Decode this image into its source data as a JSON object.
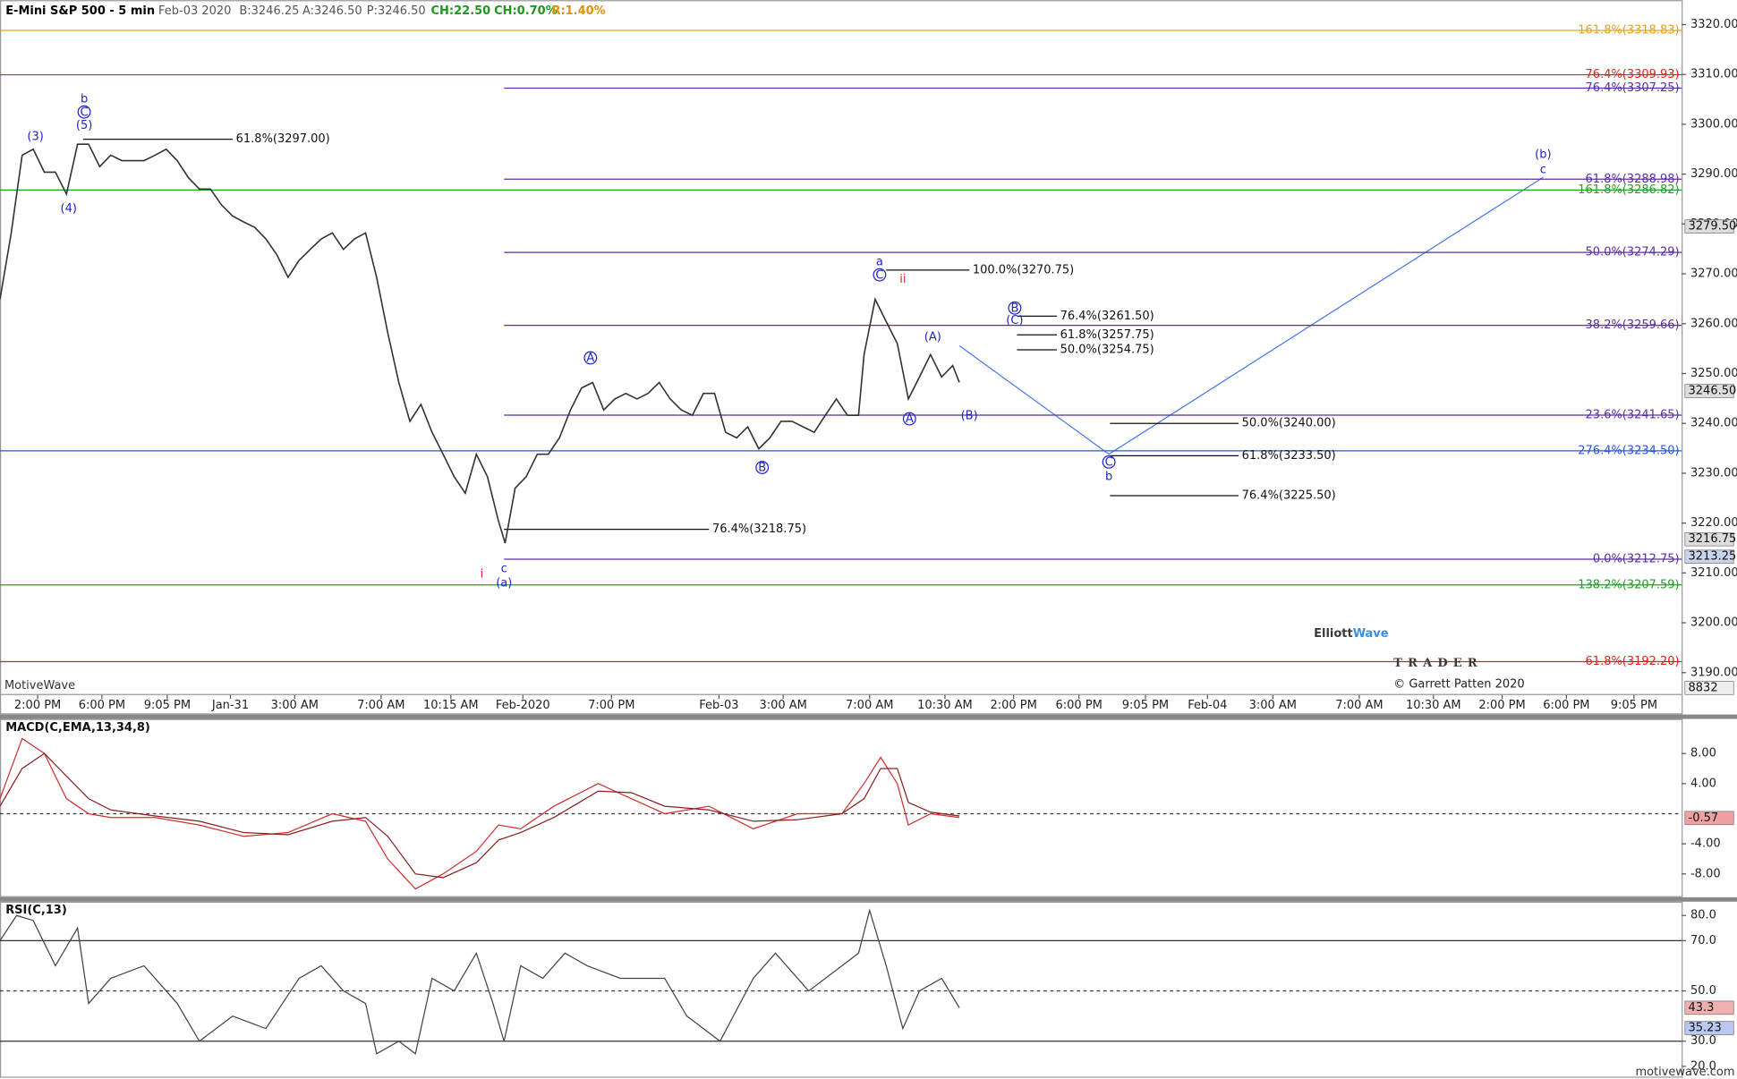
{
  "header": [
    {
      "text": "E-Mini S&P 500 - 5 min",
      "color": "#000000"
    },
    {
      "text": "Feb-03 2020",
      "color": "#555555"
    },
    {
      "text": "B:3246.25",
      "color": "#555555"
    },
    {
      "text": "A:3246.50",
      "color": "#555555"
    },
    {
      "text": "P:3246.50",
      "color": "#555555"
    },
    {
      "text": "CH:22.50",
      "color": "#1a9a1a"
    },
    {
      "text": "CH:0.70%",
      "color": "#1a9a1a"
    },
    {
      "text": "R:1.40%",
      "color": "#e0900a"
    }
  ],
  "watermark": {
    "motivewave": "MotiveWave",
    "logo_left": "Elliott",
    "logo_right": "Wave",
    "logo_sub": "TRADER",
    "copyright": "© Garrett Patten 2020",
    "site": "motivewave.com"
  },
  "chart_data": [
    {
      "type": "line",
      "color": "#333333",
      "x": [
        0,
        10,
        20,
        30,
        40,
        50,
        60,
        70,
        80,
        90,
        100,
        110,
        120,
        130,
        140,
        150,
        160,
        170,
        180,
        190,
        200,
        210,
        220,
        230,
        240,
        250,
        260,
        270,
        280,
        290,
        300,
        310,
        320,
        330,
        340,
        350,
        360,
        370,
        380,
        390,
        400,
        410,
        420,
        430,
        440,
        450,
        456,
        465,
        475,
        485,
        495,
        505,
        515,
        525,
        535,
        545,
        555,
        565,
        575,
        585,
        595,
        605,
        615,
        625,
        635,
        645,
        655,
        665,
        675,
        685,
        695,
        705,
        715,
        725,
        735,
        745,
        755,
        765,
        775,
        780,
        790,
        800,
        810,
        820,
        830,
        840,
        850,
        860,
        866
      ],
      "values": [
        3264.9,
        3278,
        3293.8,
        3295,
        3290.4,
        3290.4,
        3286,
        3296,
        3296,
        3291.5,
        3293.8,
        3292.7,
        3292.7,
        3292.7,
        3293.8,
        3295,
        3292.7,
        3289.3,
        3287,
        3287,
        3283.8,
        3281.6,
        3280.4,
        3279.3,
        3277,
        3273.8,
        3269.3,
        3272.7,
        3274.9,
        3277,
        3278.2,
        3274.9,
        3277,
        3278.2,
        3269.3,
        3258.2,
        3248.2,
        3240.4,
        3243.8,
        3238.2,
        3233.8,
        3229.3,
        3226,
        3233.8,
        3229.3,
        3220.4,
        3216,
        3227,
        3229.3,
        3233.8,
        3233.8,
        3237.1,
        3242.7,
        3247.1,
        3248.2,
        3242.7,
        3244.9,
        3246,
        3244.9,
        3246,
        3248.2,
        3244.9,
        3242.7,
        3241.6,
        3246,
        3246,
        3238.2,
        3237.1,
        3239.3,
        3234.9,
        3237.1,
        3240.4,
        3240.4,
        3239.3,
        3238.2,
        3241.6,
        3244.9,
        3241.6,
        3241.6,
        3253.8,
        3264.9,
        3260.4,
        3256,
        3244.9,
        3249.3,
        3253.8,
        3249.3,
        3251.6,
        3248.2
      ],
      "xlim": [
        0,
        1518
      ],
      "ylim": [
        3185.6,
        3324.9
      ],
      "yticks": [
        {
          "value": 3190,
          "label": "3190.00"
        },
        {
          "value": 3200,
          "label": "3200.00"
        },
        {
          "value": 3210,
          "label": "3210.00"
        },
        {
          "value": 3220,
          "label": "3220.00"
        },
        {
          "value": 3230,
          "label": "3230.00"
        },
        {
          "value": 3240,
          "label": "3240.00"
        },
        {
          "value": 3250,
          "label": "3250.00"
        },
        {
          "value": 3260,
          "label": "3260.00"
        },
        {
          "value": 3270,
          "label": "3270.00"
        },
        {
          "value": 3280,
          "label": "3280.00"
        },
        {
          "value": 3290,
          "label": "3290.00"
        },
        {
          "value": 3300,
          "label": "3300.00"
        },
        {
          "value": 3310,
          "label": "3310.00"
        },
        {
          "value": 3320,
          "label": "3320.00"
        }
      ],
      "x_tick_labels": [
        "2:00 PM",
        "6:00 PM",
        "9:05 PM",
        "Jan-31",
        "3:00 AM",
        "7:00 AM",
        "10:15 AM",
        "Feb-2020",
        "7:00 PM",
        "Feb-03",
        "3:00 AM",
        "7:00 AM",
        "10:30 AM",
        "2:00 PM",
        "6:00 PM",
        "9:05 PM",
        "Feb-04",
        "3:00 AM",
        "7:00 AM",
        "10:30 AM",
        "2:00 PM",
        "6:00 PM",
        "9:05 PM"
      ],
      "fib_levels": [
        {
          "value": 3318.83,
          "label": "161.8%(3318.83)",
          "color": "#e8a020"
        },
        {
          "value": 3309.93,
          "label": "76.4%(3309.93)",
          "color": "#e02020"
        },
        {
          "value": 3307.25,
          "label": "76.4%(3307.25)",
          "color": "#5b2ea6"
        },
        {
          "value": 3288.98,
          "label": "61.8%(3288.98)",
          "color": "#5b2ea6"
        },
        {
          "value": 3286.82,
          "label": "161.8%(3286.82)",
          "color": "#2a9a2a"
        },
        {
          "value": 3274.29,
          "label": "50.0%(3274.29)",
          "color": "#5b2ea6"
        },
        {
          "value": 3259.66,
          "label": "38.2%(3259.66)",
          "color": "#5b2ea6"
        },
        {
          "value": 3241.65,
          "label": "23.6%(3241.65)",
          "color": "#5b2ea6"
        },
        {
          "value": 3234.5,
          "label": "276.4%(3234.50)",
          "color": "#2a55e0"
        },
        {
          "value": 3212.75,
          "label": "0.0%(3212.75)",
          "color": "#5b2ea6"
        },
        {
          "value": 3207.59,
          "label": "138.2%(3207.59)",
          "color": "#2a9a2a"
        },
        {
          "value": 3192.2,
          "label": "61.8%(3192.20)",
          "color": "#e02020"
        }
      ],
      "short_levels": [
        {
          "value": 3297.0,
          "label": "61.8%(3297.00)"
        },
        {
          "value": 3270.75,
          "label": "100.0%(3270.75)"
        },
        {
          "value": 3261.5,
          "label": "76.4%(3261.50)"
        },
        {
          "value": 3257.75,
          "label": "61.8%(3257.75)"
        },
        {
          "value": 3254.75,
          "label": "50.0%(3254.75)"
        },
        {
          "value": 3240.0,
          "label": "50.0%(3240.00)"
        },
        {
          "value": 3233.5,
          "label": "61.8%(3233.50)"
        },
        {
          "value": 3225.5,
          "label": "76.4%(3225.50)"
        },
        {
          "value": 3218.75,
          "label": "76.4%(3218.75)"
        }
      ],
      "wave_labels": [
        {
          "text": "b",
          "color": "#2222cc"
        },
        {
          "text": "C",
          "color": "#2222cc",
          "circled": true
        },
        {
          "text": "(5)",
          "color": "#2222cc"
        },
        {
          "text": "(3)",
          "color": "#2222cc"
        },
        {
          "text": "(4)",
          "color": "#2222cc"
        },
        {
          "text": "i",
          "color": "#dd2222"
        },
        {
          "text": "c",
          "color": "#2222cc"
        },
        {
          "text": "(a)",
          "color": "#2222cc"
        },
        {
          "text": "A",
          "color": "#2222cc",
          "circled": true
        },
        {
          "text": "B",
          "color": "#2222cc",
          "circled": true
        },
        {
          "text": "a",
          "color": "#2222cc"
        },
        {
          "text": "C",
          "color": "#2222cc",
          "circled": true
        },
        {
          "text": "ii",
          "color": "#dd2222"
        },
        {
          "text": "(A)",
          "color": "#2222cc"
        },
        {
          "text": "A",
          "color": "#2222cc",
          "circled": true
        },
        {
          "text": "(B)",
          "color": "#2222cc"
        },
        {
          "text": "B",
          "color": "#2222cc",
          "circled": true
        },
        {
          "text": "(C)",
          "color": "#2222cc"
        },
        {
          "text": "C",
          "color": "#2222cc",
          "circled": true
        },
        {
          "text": "b",
          "color": "#2222cc"
        },
        {
          "text": "(b)",
          "color": "#2222cc"
        },
        {
          "text": "c",
          "color": "#2222cc"
        }
      ],
      "price_markers": [
        {
          "value": 3279.5,
          "label": "3279.50",
          "color": "#dddddd"
        },
        {
          "value": 3246.5,
          "label": "3246.50",
          "color": "#dddddd"
        },
        {
          "value": 3216.75,
          "label": "3216.75",
          "color": "#dddddd"
        },
        {
          "value": 3213.25,
          "label": "3213.25",
          "color": "#c8d4ec"
        }
      ],
      "volume_label": "8832"
    },
    {
      "type": "line",
      "title": "MACD(C,EMA,13,34,8)",
      "xlim": [
        0,
        1518
      ],
      "ylim": [
        -11.1,
        12.6
      ],
      "yticks": [
        {
          "value": 8,
          "label": "8.00"
        },
        {
          "value": 4,
          "label": "4.00"
        },
        {
          "value": -4,
          "label": "-4.00"
        },
        {
          "value": -8,
          "label": "-8.00"
        }
      ],
      "zero_line": 0,
      "x": [
        0,
        20,
        40,
        60,
        80,
        100,
        140,
        180,
        220,
        260,
        300,
        330,
        350,
        375,
        400,
        430,
        450,
        470,
        500,
        540,
        570,
        600,
        640,
        680,
        720,
        760,
        780,
        795,
        810,
        820,
        840,
        866
      ],
      "series": [
        {
          "name": "MACD",
          "color": "#d03030",
          "values": [
            2,
            10,
            8,
            2,
            0,
            -0.5,
            -0.5,
            -1.5,
            -3,
            -2.5,
            0,
            -1,
            -6,
            -10,
            -8,
            -5,
            -1.5,
            -2,
            1,
            4,
            2,
            0,
            1,
            -2,
            0,
            0,
            4,
            7.5,
            4,
            -1.5,
            0,
            -0.5
          ]
        },
        {
          "name": "Signal",
          "color": "#8a2020",
          "values": [
            1,
            6,
            8,
            5,
            2,
            0.5,
            -0.3,
            -1,
            -2.5,
            -2.8,
            -1,
            -0.5,
            -3,
            -8,
            -8.5,
            -6.5,
            -3.5,
            -2.5,
            -0.5,
            3,
            2.8,
            1,
            0.5,
            -1,
            -0.8,
            0,
            2,
            6,
            6,
            1.5,
            0.2,
            -0.3
          ]
        }
      ],
      "last_marker": {
        "value": -0.57,
        "label": "-0.57"
      }
    },
    {
      "type": "line",
      "title": "RSI(C,13)",
      "xlim": [
        0,
        1518
      ],
      "ylim": [
        15.9,
        85.5
      ],
      "yticks": [
        {
          "value": 80,
          "label": "80.0"
        },
        {
          "value": 70,
          "label": "70.0"
        },
        {
          "value": 50,
          "label": "50.0"
        },
        {
          "value": 30,
          "label": "30.0"
        },
        {
          "value": 20,
          "label": "20.0"
        }
      ],
      "levels": [
        70,
        50,
        30
      ],
      "x": [
        0,
        15,
        30,
        50,
        70,
        80,
        100,
        130,
        160,
        180,
        210,
        240,
        270,
        290,
        310,
        330,
        340,
        360,
        375,
        390,
        410,
        430,
        445,
        455,
        470,
        490,
        510,
        530,
        560,
        600,
        620,
        650,
        680,
        700,
        730,
        760,
        775,
        785,
        800,
        815,
        830,
        850,
        866
      ],
      "series": [
        {
          "name": "RSI",
          "color": "#444444",
          "values": [
            70,
            80,
            78,
            60,
            75,
            45,
            55,
            60,
            45,
            30,
            40,
            35,
            55,
            60,
            50,
            45,
            25,
            30,
            25,
            55,
            50,
            65,
            45,
            30,
            60,
            55,
            65,
            60,
            55,
            55,
            40,
            30,
            55,
            65,
            50,
            60,
            65,
            82,
            60,
            35,
            50,
            55,
            43.3
          ]
        }
      ],
      "last_markers": [
        {
          "value": 43.3,
          "label": "43.3",
          "color": "#f0b0b0"
        },
        {
          "value": 35.23,
          "label": "35.23",
          "color": "#b8c8f0"
        }
      ]
    }
  ]
}
